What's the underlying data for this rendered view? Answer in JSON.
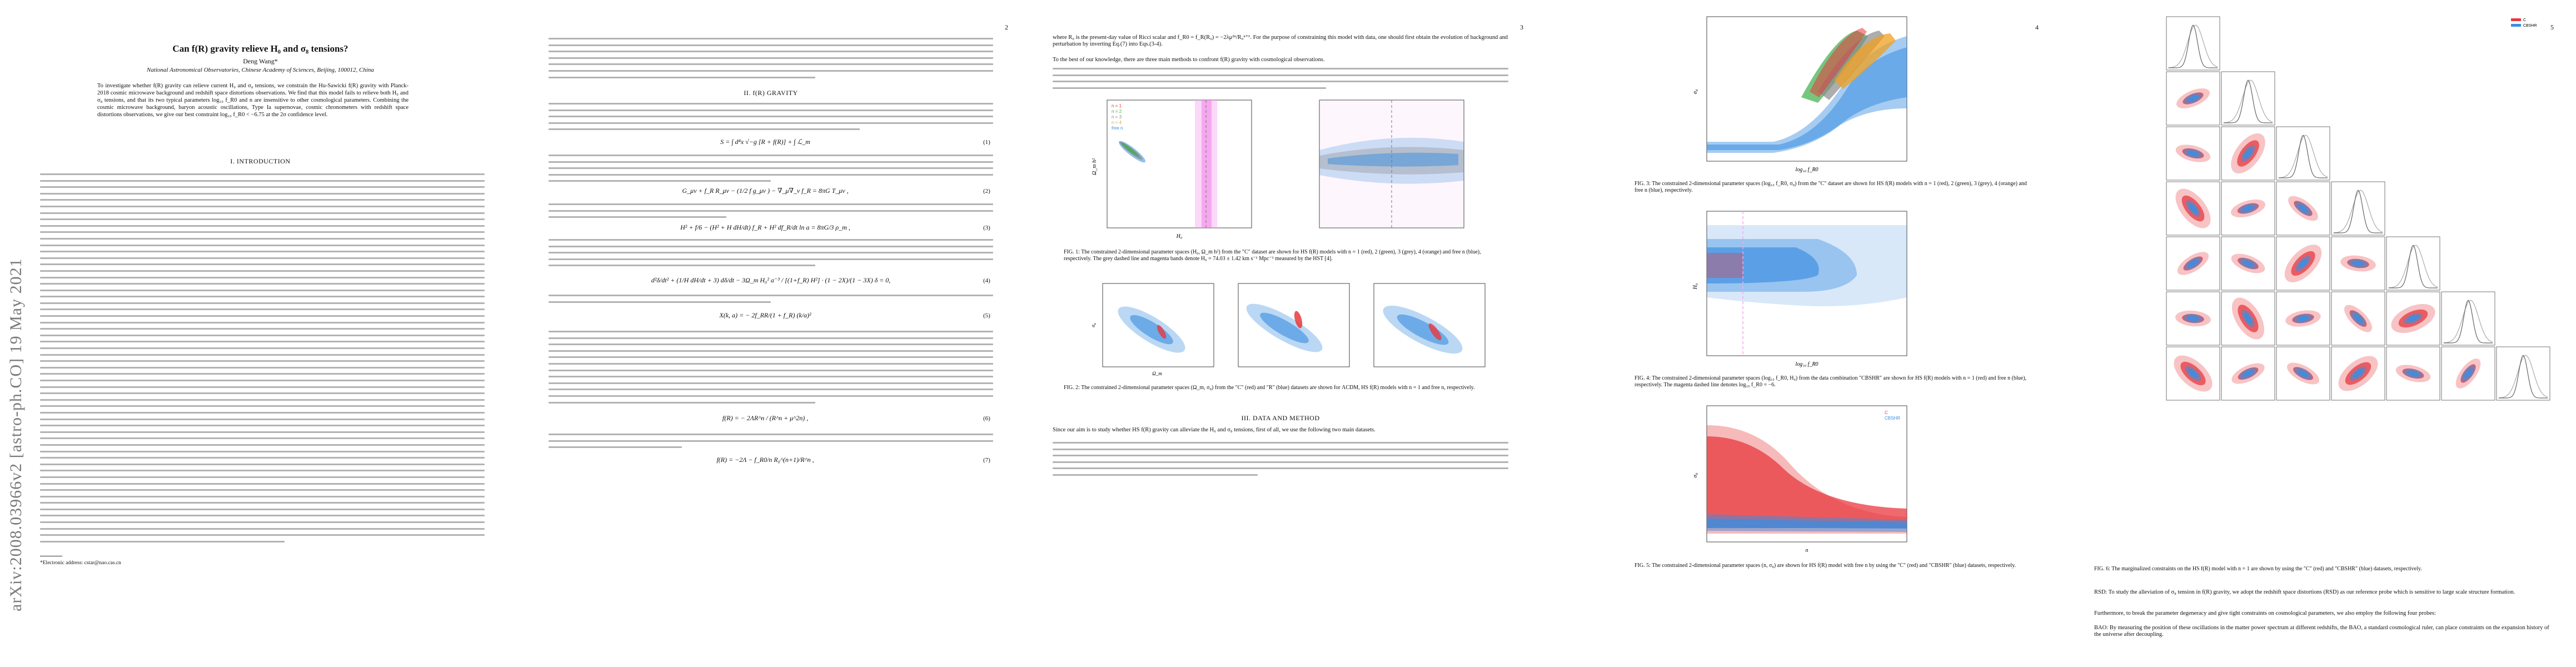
{
  "sidebar": {
    "arxiv_stamp": "arXiv:2008.03966v2  [astro-ph.CO]  19 May 2021"
  },
  "pages": [
    {
      "number": ""
    },
    {
      "number": "2"
    },
    {
      "number": "3"
    },
    {
      "number": "4"
    },
    {
      "number": "5"
    }
  ],
  "header": {
    "title": "Can f(R) gravity relieve H₀ and σ₈ tensions?",
    "author": "Deng Wang*",
    "affiliation": "National Astronomical Observatories, Chinese Academy of Sciences, Beijing, 100012, China"
  },
  "abstract": "To investigate whether f(R) gravity can relieve current H₀ and σ₈ tensions, we constrain the Hu-Sawicki f(R) gravity with Planck-2018 cosmic microwave background and redshift space distortions observations. We find that this model fails to relieve both H₀ and σ₈ tensions, and that its two typical parameters log₁₀ f_R0 and n are insensitive to other cosmological parameters. Combining the cosmic microwave background, baryon acoustic oscillations, Type Ia supernovae, cosmic chronometers with redshift space distortions observations, we give our best constraint log₁₀ f_R0 < −6.75 at the 2σ confidence level.",
  "sections": {
    "intro": "I.   INTRODUCTION",
    "gravity": "II.   f(R) GRAVITY",
    "data": "III.   DATA AND METHOD"
  },
  "footnote": "*Electronic address: cstar@nao.cas.cn",
  "equations": {
    "eq1": "S = ∫ d⁴x √−g [R + f(R)] + ∫ ℒ_m",
    "eq1n": "(1)",
    "eq2": "G_μν + f_R R_μν − (1/2 f g_μν ) − ∇_μ∇_ν f_R = 8πG T_μν ,",
    "eq2n": "(2)",
    "eq3": "H² + f/6 − (H² + H dH/dt) f_R + H² df_R/dt ln a = 8πG/3 ρ_m ,",
    "eq3n": "(3)",
    "eq4": "d²δ/dt² + (1/H dH/dt + 3) dδ/dt − 3Ω_m H₀² a⁻³ / [(1+f_R) H²] · (1 − 2X)/(1 − 3X) δ = 0,",
    "eq4n": "(4)",
    "eq5": "X(k, a) = − 2f_RR/(1 + f_R) (k/a)²",
    "eq5n": "(5)",
    "eq6": "f(R) = − 2ΛR^n / (R^n + μ^2n) ,",
    "eq6n": "(6)",
    "eq7": "f(R) = −2Λ − f_R0/n R₀^(n+1)/R^n ,",
    "eq7n": "(7)"
  },
  "paragraphs": {
    "p3_intro": "where R₀ is the present-day value of Ricci scalar and f_R0 = f_R(R₀) = −2λμ²ⁿ/R₀ⁿ⁺¹. For the purpose of constraining this model with data, one should first obtain the evolution of background and perturbation by inverting Eq.(7) into Eqs.(3-4).",
    "p3_knowledge": "To the best of our knowledge, there are three main methods to confront f(R) gravity with cosmological observations.",
    "p3_data": "Since our aim is to study whether HS f(R) gravity can alleviate the H₀ and σ₈ tensions, first of all, we use the following two main datasets.",
    "p5_rsd": "RSD: To study the alleviation of σ₈ tension in f(R) gravity, we adopt the redshift space distortions (RSD) as our reference probe which is sensitive to large scale structure formation.",
    "p5_furthermore": "Furthermore, to break the parameter degeneracy and give tight constraints on cosmological parameters, we also employ the following four probes:",
    "p5_bao": "BAO: By measuring the position of these oscillations in the matter power spectrum at different redshifts, the BAO, a standard cosmological ruler, can place constraints on the expansion history of the universe after decoupling."
  },
  "captions": {
    "fig1": "FIG. 1: The constrained 2-dimensional parameter spaces (H₀, Ω_m h²) from the \"C\" dataset are shown for HS f(R) models with n = 1 (red), 2 (green), 3 (grey), 4 (orange) and free n (blue), respectively. The grey dashed line and magenta bands denote H₀ = 74.03 ± 1.42 km s⁻¹ Mpc⁻¹ measured by the HST [4].",
    "fig2": "FIG. 2: The constrained 2-dimensional parameter spaces (Ω_m, σ₈) from the \"C\" (red) and \"R\" (blue) datasets are shown for ΛCDM, HS f(R) models with n = 1 and free n, respectively.",
    "fig3": "FIG. 3: The constrained 2-dimensional parameter spaces (log₁₀ f_R0, σ₈) from the \"C\" dataset are shown for HS f(R) models with n = 1 (red), 2 (green), 3 (grey), 4 (orange) and free n (blue), respectively.",
    "fig4": "FIG. 4: The constrained 2-dimensional parameter spaces (log₁₀ f_R0, H₀) from the data combination \"CBSHR\" are shown for HS f(R) models with n = 1 (red) and free n (blue), respectively. The magenta dashed line denotes log₁₀ f_R0 = −6.",
    "fig5": "FIG. 5: The constrained 2-dimensional parameter spaces (n, σ₈) are shown for HS f(R) model with free n by using the \"C\" (red) and \"CBSHR\" (blue) datasets, respectively.",
    "fig6": "FIG. 6: The marginalized constraints on the HS f(R) model with n = 1 are shown by using the \"C\" (red) and \"CBSHR\" (blue) datasets, respectively."
  },
  "figure_labels": {
    "fig1_legend": [
      "n = 1",
      "n = 2",
      "n = 3",
      "n = 4",
      "free n"
    ],
    "fig1_xlabel": "H₀",
    "fig1_ylabel": "Ω_m h²",
    "fig3_xlabel": "log₁₀ f_R0",
    "fig3_ylabel": "σ₈",
    "fig4_xlabel": "log₁₀ f_R0",
    "fig4_ylabel": "H₀",
    "fig5_xlabel": "n",
    "fig5_ylabel": "σ₈",
    "fig5_legend": [
      "C",
      "CBSHR"
    ],
    "fig2_ylabel": "σ₈",
    "fig2_xlabel": "Ω_m"
  },
  "colors": {
    "red": "#e8383d",
    "blue": "#3a8ee0",
    "green": "#3cae4a",
    "orange": "#f0a020",
    "grey": "#8a8a8a",
    "magenta": "#f6a6ef"
  }
}
